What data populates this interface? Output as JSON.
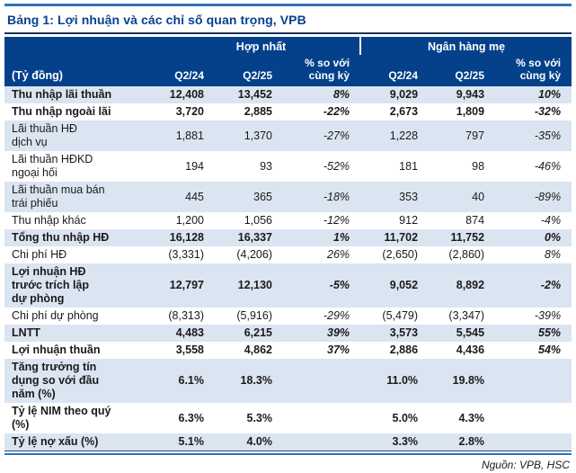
{
  "title": "Bảng 1: Lợi nhuận và các chỉ số quan trọng, VPB",
  "source": "Nguồn: VPB, HSC",
  "colors": {
    "header_bg": "#04418a",
    "title_text": "#07408c",
    "row_stripe": "#dbe5f1",
    "rule_blue": "#2e74b5",
    "rule_navy": "#17365d"
  },
  "table": {
    "unit_label": "(Tỷ đồng)",
    "groups": [
      {
        "label": "Hợp nhất"
      },
      {
        "label": "Ngân hàng mẹ"
      }
    ],
    "columns": [
      "Q2/24",
      "Q2/25",
      "% so với\ncùng kỳ",
      "Q2/24",
      "Q2/25",
      "% so với\ncùng kỳ"
    ],
    "rows": [
      {
        "label": "Thu nhập lãi thuần",
        "bold": true,
        "values": [
          "12,408",
          "13,452",
          "8%",
          "9,029",
          "9,943",
          "10%"
        ]
      },
      {
        "label": "Thu nhập ngoài lãi",
        "bold": true,
        "values": [
          "3,720",
          "2,885",
          "-22%",
          "2,673",
          "1,809",
          "-32%"
        ]
      },
      {
        "label": "Lãi thuần HĐ\ndịch vụ",
        "bold": false,
        "values": [
          "1,881",
          "1,370",
          "-27%",
          "1,228",
          "797",
          "-35%"
        ]
      },
      {
        "label": "Lãi thuần HĐKD\nngoại hối",
        "bold": false,
        "values": [
          "194",
          "93",
          "-52%",
          "181",
          "98",
          "-46%"
        ]
      },
      {
        "label": "Lãi thuần mua bán\ntrái phiếu",
        "bold": false,
        "values": [
          "445",
          "365",
          "-18%",
          "353",
          "40",
          "-89%"
        ]
      },
      {
        "label": "Thu nhập khác",
        "bold": false,
        "values": [
          "1,200",
          "1,056",
          "-12%",
          "912",
          "874",
          "-4%"
        ]
      },
      {
        "label": "Tổng thu nhập HĐ",
        "bold": true,
        "values": [
          "16,128",
          "16,337",
          "1%",
          "11,702",
          "11,752",
          "0%"
        ]
      },
      {
        "label": "Chi phí HĐ",
        "bold": false,
        "values": [
          "(3,331)",
          "(4,206)",
          "26%",
          "(2,650)",
          "(2,860)",
          "8%"
        ]
      },
      {
        "label": "Lợi nhuận HĐ\ntrước trích lập\ndự phòng",
        "bold": true,
        "values": [
          "12,797",
          "12,130",
          "-5%",
          "9,052",
          "8,892",
          "-2%"
        ]
      },
      {
        "label": "Chi phí dự phòng",
        "bold": false,
        "values": [
          "(8,313)",
          "(5,916)",
          "-29%",
          "(5,479)",
          "(3,347)",
          "-39%"
        ]
      },
      {
        "label": "LNTT",
        "bold": true,
        "values": [
          "4,483",
          "6,215",
          "39%",
          "3,573",
          "5,545",
          "55%"
        ]
      },
      {
        "label": "Lợi nhuận thuần",
        "bold": true,
        "values": [
          "3,558",
          "4,862",
          "37%",
          "2,886",
          "4,436",
          "54%"
        ]
      },
      {
        "label": "Tăng trưởng tín\ndụng so với đầu\nnăm (%)",
        "bold": true,
        "values": [
          "6.1%",
          "18.3%",
          "",
          "11.0%",
          "19.8%",
          ""
        ]
      },
      {
        "label": "Tỷ lệ NIM theo quý\n(%)",
        "bold": true,
        "values": [
          "6.3%",
          "5.3%",
          "",
          "5.0%",
          "4.3%",
          ""
        ]
      },
      {
        "label": "Tỷ lệ nợ xấu (%)",
        "bold": true,
        "values": [
          "5.1%",
          "4.0%",
          "",
          "3.3%",
          "2.8%",
          ""
        ]
      }
    ]
  }
}
